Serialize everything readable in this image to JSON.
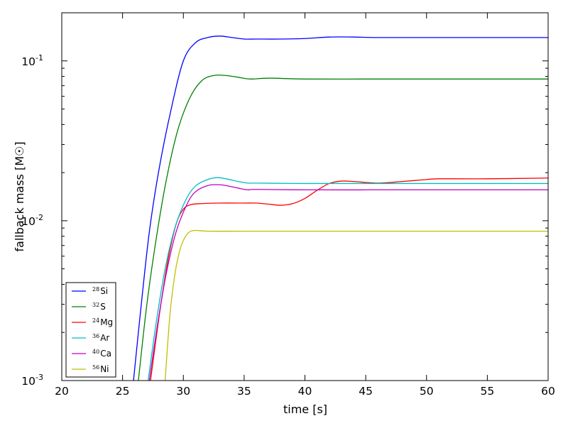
{
  "chart_data": {
    "type": "line",
    "xlabel": "time [s]",
    "ylabel": "fallback mass [M☉]",
    "xlim": [
      20,
      60
    ],
    "ylim": [
      0.001,
      0.2
    ],
    "yscale": "log",
    "grid": false,
    "legend_position": "bottom-left",
    "x_ticks": [
      "20",
      "25",
      "30",
      "35",
      "40",
      "45",
      "50",
      "55",
      "60"
    ],
    "y_ticks": [
      {
        "value": 0.1,
        "base": "10",
        "exponent": "-1"
      },
      {
        "value": 0.01,
        "base": "10",
        "exponent": "-2"
      },
      {
        "value": 0.001,
        "base": "10",
        "exponent": "-3"
      }
    ],
    "series": [
      {
        "name": "Si",
        "mass_number": "28",
        "color": "#0000ff",
        "x": [
          25.9,
          26.5,
          27.2,
          28.0,
          29.0,
          30.0,
          31.0,
          32.0,
          33.0,
          34.0,
          35.0,
          36.0,
          38.0,
          40.0,
          42.0,
          44.0,
          46.0,
          50.0,
          55.0,
          60.0
        ],
        "y": [
          0.001,
          0.0028,
          0.0085,
          0.021,
          0.05,
          0.1,
          0.13,
          0.14,
          0.143,
          0.14,
          0.137,
          0.137,
          0.137,
          0.138,
          0.141,
          0.141,
          0.14,
          0.14,
          0.14,
          0.14
        ]
      },
      {
        "name": "S",
        "mass_number": "32",
        "color": "#008000",
        "x": [
          26.3,
          27.0,
          27.8,
          28.6,
          29.5,
          30.5,
          31.5,
          32.5,
          33.5,
          34.5,
          35.5,
          37.0,
          40.0,
          45.0,
          50.0,
          55.0,
          60.0
        ],
        "y": [
          0.001,
          0.003,
          0.008,
          0.018,
          0.036,
          0.058,
          0.075,
          0.081,
          0.081,
          0.079,
          0.077,
          0.078,
          0.077,
          0.077,
          0.077,
          0.077,
          0.077
        ]
      },
      {
        "name": "Mg",
        "mass_number": "24",
        "color": "#ff0000",
        "x": [
          27.3,
          28.0,
          28.7,
          29.4,
          30.0,
          30.6,
          31.5,
          33.0,
          35.0,
          36.0,
          37.0,
          38.0,
          39.0,
          40.0,
          41.0,
          42.0,
          43.0,
          44.0,
          46.0,
          48.0,
          50.0,
          51.0,
          55.0,
          60.0
        ],
        "y": [
          0.001,
          0.0025,
          0.0055,
          0.0095,
          0.0118,
          0.0126,
          0.0128,
          0.0129,
          0.0129,
          0.0129,
          0.0127,
          0.0125,
          0.0128,
          0.0138,
          0.0155,
          0.0171,
          0.0177,
          0.0176,
          0.0172,
          0.0176,
          0.0181,
          0.0183,
          0.0183,
          0.0185
        ]
      },
      {
        "name": "Ar",
        "mass_number": "36",
        "color": "#00bfbf",
        "x": [
          27.1,
          27.8,
          28.5,
          29.3,
          30.2,
          31.0,
          32.0,
          32.8,
          33.5,
          34.5,
          35.3,
          36.0,
          40.0,
          45.0,
          50.0,
          55.0,
          60.0
        ],
        "y": [
          0.001,
          0.0024,
          0.005,
          0.009,
          0.0135,
          0.0165,
          0.0181,
          0.0186,
          0.0183,
          0.0176,
          0.0172,
          0.0172,
          0.0171,
          0.0171,
          0.0171,
          0.0171,
          0.0171
        ]
      },
      {
        "name": "Ca",
        "mass_number": "40",
        "color": "#bf00bf",
        "x": [
          27.2,
          27.9,
          28.6,
          29.4,
          30.3,
          31.0,
          32.0,
          32.8,
          33.5,
          34.5,
          35.3,
          36.0,
          40.0,
          45.0,
          50.0,
          55.0,
          60.0
        ],
        "y": [
          0.001,
          0.0023,
          0.0047,
          0.0085,
          0.0127,
          0.0152,
          0.0166,
          0.0168,
          0.0166,
          0.016,
          0.0156,
          0.0157,
          0.0156,
          0.0156,
          0.0156,
          0.0156,
          0.0156
        ]
      },
      {
        "name": "Ni",
        "mass_number": "56",
        "color": "#bfbf00",
        "x": [
          28.5,
          28.9,
          29.3,
          29.7,
          30.1,
          30.5,
          31.0,
          32.0,
          35.0,
          40.0,
          45.0,
          50.0,
          55.0,
          60.0
        ],
        "y": [
          0.001,
          0.0026,
          0.0046,
          0.0065,
          0.0078,
          0.0085,
          0.0087,
          0.0086,
          0.0086,
          0.0086,
          0.0086,
          0.0086,
          0.0086,
          0.0086
        ]
      }
    ]
  }
}
